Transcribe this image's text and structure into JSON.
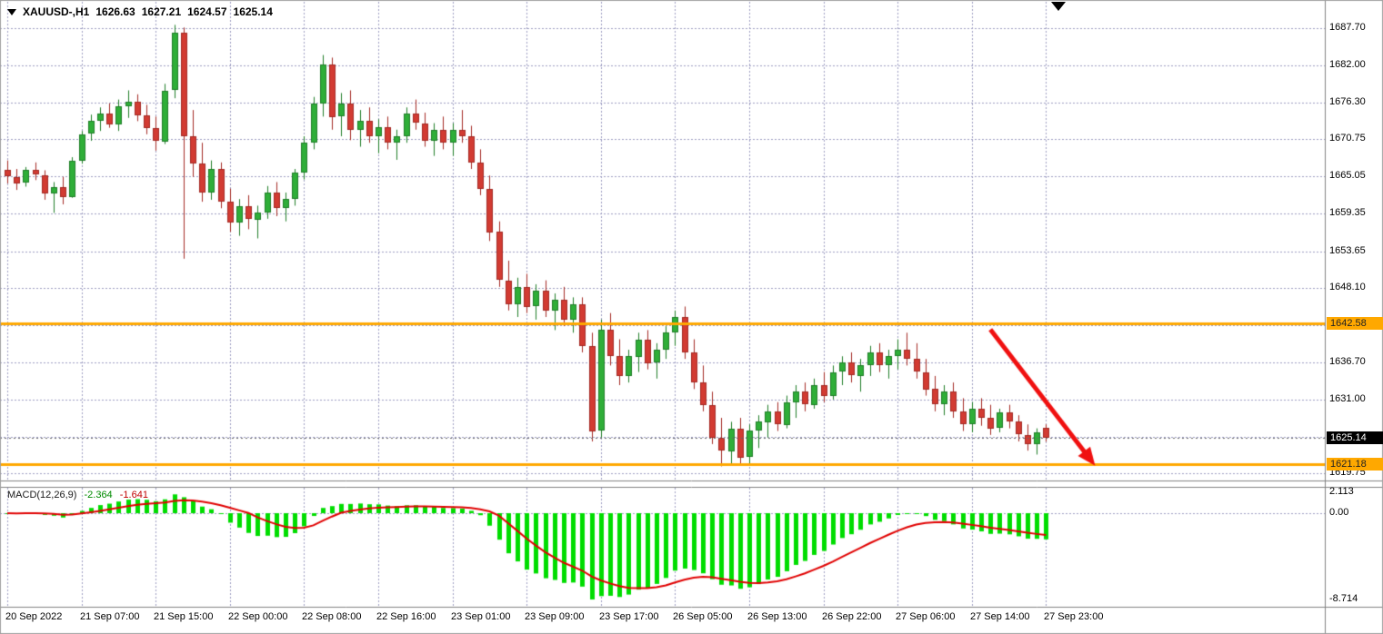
{
  "header": {
    "symbol": "XAUUSD-,H1",
    "open": "1626.63",
    "high": "1627.21",
    "low": "1624.57",
    "close": "1625.14"
  },
  "macd_header": {
    "label": "MACD(12,26,9)",
    "value": "-2.364",
    "signal": "-1.641"
  },
  "chart_data": {
    "type": "candlestick",
    "symbol": "XAUUSD-",
    "timeframe": "H1",
    "grid": true,
    "price_gridlines": [
      1687.7,
      1682.0,
      1676.3,
      1670.75,
      1665.05,
      1659.35,
      1653.65,
      1648.1,
      1642.4,
      1636.7,
      1631.0,
      1625.3,
      1619.75
    ],
    "hidden_gridline_labels": [
      8,
      11
    ],
    "time_ticks": [
      {
        "i": 0,
        "label": "20 Sep 2022"
      },
      {
        "i": 8,
        "label": "21 Sep 07:00"
      },
      {
        "i": 16,
        "label": "21 Sep 15:00"
      },
      {
        "i": 24,
        "label": "22 Sep 00:00"
      },
      {
        "i": 32,
        "label": "22 Sep 08:00"
      },
      {
        "i": 40,
        "label": "22 Sep 16:00"
      },
      {
        "i": 48,
        "label": "23 Sep 01:00"
      },
      {
        "i": 56,
        "label": "23 Sep 09:00"
      },
      {
        "i": 64,
        "label": "23 Sep 17:00"
      },
      {
        "i": 72,
        "label": "26 Sep 05:00"
      },
      {
        "i": 80,
        "label": "26 Sep 13:00"
      },
      {
        "i": 88,
        "label": "26 Sep 22:00"
      },
      {
        "i": 96,
        "label": "27 Sep 06:00"
      },
      {
        "i": 104,
        "label": "27 Sep 14:00"
      },
      {
        "i": 112,
        "label": "27 Sep 23:00"
      }
    ],
    "candles": [
      [
        1666.0,
        1667.5,
        1664.0,
        1665.0
      ],
      [
        1665.0,
        1666.2,
        1663.0,
        1664.0
      ],
      [
        1664.0,
        1666.5,
        1663.5,
        1666.0
      ],
      [
        1666.0,
        1667.2,
        1664.5,
        1665.3
      ],
      [
        1665.3,
        1666.0,
        1661.5,
        1662.5
      ],
      [
        1662.5,
        1664.2,
        1659.5,
        1663.5
      ],
      [
        1663.5,
        1665.0,
        1660.8,
        1662.0
      ],
      [
        1662.0,
        1668.0,
        1661.8,
        1667.5
      ],
      [
        1667.5,
        1672.0,
        1667.0,
        1671.5
      ],
      [
        1671.5,
        1674.5,
        1670.5,
        1673.5
      ],
      [
        1673.5,
        1675.6,
        1672.0,
        1674.6
      ],
      [
        1674.6,
        1676.2,
        1672.5,
        1673.0
      ],
      [
        1673.0,
        1676.8,
        1672.0,
        1675.8
      ],
      [
        1675.8,
        1678.2,
        1674.0,
        1676.5
      ],
      [
        1676.5,
        1677.6,
        1673.5,
        1674.4
      ],
      [
        1674.4,
        1676.0,
        1671.5,
        1672.5
      ],
      [
        1672.5,
        1674.2,
        1669.0,
        1670.5
      ],
      [
        1670.5,
        1679.2,
        1670.0,
        1678.2
      ],
      [
        1678.2,
        1688.2,
        1677.0,
        1687.0
      ],
      [
        1687.0,
        1687.8,
        1652.5,
        1671.2
      ],
      [
        1671.2,
        1675.2,
        1665.0,
        1667.0
      ],
      [
        1667.0,
        1670.2,
        1661.2,
        1662.6
      ],
      [
        1662.6,
        1667.5,
        1661.5,
        1666.2
      ],
      [
        1666.2,
        1667.2,
        1660.2,
        1661.2
      ],
      [
        1661.2,
        1663.2,
        1656.6,
        1658.0
      ],
      [
        1658.0,
        1661.6,
        1656.0,
        1660.5
      ],
      [
        1660.5,
        1662.2,
        1657.0,
        1658.5
      ],
      [
        1658.5,
        1660.6,
        1655.6,
        1659.6
      ],
      [
        1659.6,
        1663.6,
        1658.6,
        1662.6
      ],
      [
        1662.6,
        1664.2,
        1659.0,
        1660.2
      ],
      [
        1660.2,
        1662.6,
        1658.2,
        1661.6
      ],
      [
        1661.6,
        1666.2,
        1660.6,
        1665.6
      ],
      [
        1665.6,
        1671.2,
        1664.6,
        1670.2
      ],
      [
        1670.2,
        1677.2,
        1669.2,
        1676.2
      ],
      [
        1676.2,
        1683.6,
        1674.2,
        1682.2
      ],
      [
        1682.2,
        1683.2,
        1672.2,
        1674.2
      ],
      [
        1674.2,
        1677.8,
        1671.2,
        1676.2
      ],
      [
        1676.2,
        1678.2,
        1670.6,
        1672.2
      ],
      [
        1672.2,
        1675.2,
        1669.6,
        1673.6
      ],
      [
        1673.6,
        1675.6,
        1670.2,
        1671.2
      ],
      [
        1671.2,
        1673.8,
        1668.6,
        1672.6
      ],
      [
        1672.6,
        1674.2,
        1669.2,
        1670.2
      ],
      [
        1670.2,
        1672.2,
        1667.6,
        1671.2
      ],
      [
        1671.2,
        1675.6,
        1670.2,
        1674.6
      ],
      [
        1674.6,
        1676.8,
        1672.2,
        1673.2
      ],
      [
        1673.2,
        1674.8,
        1669.6,
        1670.6
      ],
      [
        1670.6,
        1673.2,
        1668.2,
        1672.2
      ],
      [
        1672.2,
        1674.2,
        1669.2,
        1670.2
      ],
      [
        1670.2,
        1673.2,
        1668.2,
        1672.2
      ],
      [
        1672.2,
        1675.2,
        1670.2,
        1671.2
      ],
      [
        1671.2,
        1672.8,
        1666.2,
        1667.2
      ],
      [
        1667.2,
        1669.2,
        1662.2,
        1663.2
      ],
      [
        1663.2,
        1665.2,
        1655.2,
        1656.6
      ],
      [
        1656.6,
        1658.2,
        1648.2,
        1649.2
      ],
      [
        1649.2,
        1652.2,
        1644.6,
        1645.6
      ],
      [
        1645.6,
        1649.6,
        1643.6,
        1648.2
      ],
      [
        1648.2,
        1650.2,
        1644.2,
        1645.2
      ],
      [
        1645.2,
        1648.6,
        1643.2,
        1647.6
      ],
      [
        1647.6,
        1649.2,
        1643.6,
        1644.6
      ],
      [
        1644.6,
        1647.2,
        1641.6,
        1646.2
      ],
      [
        1646.2,
        1648.2,
        1642.2,
        1643.2
      ],
      [
        1643.2,
        1646.6,
        1641.2,
        1645.6
      ],
      [
        1645.6,
        1646.6,
        1638.2,
        1639.2
      ],
      [
        1639.2,
        1641.2,
        1624.6,
        1626.2
      ],
      [
        1626.2,
        1643.2,
        1625.2,
        1641.6
      ],
      [
        1641.6,
        1644.2,
        1636.2,
        1637.6
      ],
      [
        1637.6,
        1640.2,
        1633.2,
        1634.6
      ],
      [
        1634.6,
        1638.6,
        1633.6,
        1637.6
      ],
      [
        1637.6,
        1641.2,
        1635.2,
        1640.2
      ],
      [
        1640.2,
        1641.6,
        1635.6,
        1636.6
      ],
      [
        1636.6,
        1639.6,
        1634.2,
        1638.6
      ],
      [
        1638.6,
        1642.2,
        1637.2,
        1641.2
      ],
      [
        1641.2,
        1644.6,
        1639.2,
        1643.6
      ],
      [
        1643.6,
        1645.2,
        1637.2,
        1638.2
      ],
      [
        1638.2,
        1640.2,
        1632.6,
        1633.6
      ],
      [
        1633.6,
        1636.2,
        1629.2,
        1630.2
      ],
      [
        1630.2,
        1632.2,
        1624.2,
        1625.2
      ],
      [
        1625.2,
        1628.2,
        1620.8,
        1623.2
      ],
      [
        1623.2,
        1627.6,
        1621.2,
        1626.6
      ],
      [
        1626.6,
        1628.2,
        1621.0,
        1622.2
      ],
      [
        1622.2,
        1627.2,
        1621.2,
        1626.2
      ],
      [
        1626.2,
        1628.6,
        1623.6,
        1627.6
      ],
      [
        1627.6,
        1630.2,
        1625.2,
        1629.2
      ],
      [
        1629.2,
        1630.6,
        1626.2,
        1627.2
      ],
      [
        1627.2,
        1631.6,
        1626.6,
        1630.6
      ],
      [
        1630.6,
        1633.2,
        1628.2,
        1632.2
      ],
      [
        1632.2,
        1633.6,
        1629.2,
        1630.2
      ],
      [
        1630.2,
        1634.2,
        1629.6,
        1633.2
      ],
      [
        1633.2,
        1635.2,
        1630.6,
        1631.6
      ],
      [
        1631.6,
        1636.2,
        1631.0,
        1635.2
      ],
      [
        1635.2,
        1637.6,
        1633.2,
        1636.6
      ],
      [
        1636.6,
        1638.2,
        1633.6,
        1634.6
      ],
      [
        1634.6,
        1637.2,
        1632.2,
        1636.2
      ],
      [
        1636.2,
        1639.2,
        1634.6,
        1638.2
      ],
      [
        1638.2,
        1639.6,
        1635.2,
        1636.2
      ],
      [
        1636.2,
        1638.6,
        1634.2,
        1637.6
      ],
      [
        1637.6,
        1640.2,
        1635.6,
        1638.6
      ],
      [
        1638.6,
        1641.2,
        1636.2,
        1637.2
      ],
      [
        1637.2,
        1639.6,
        1634.2,
        1635.2
      ],
      [
        1635.2,
        1637.2,
        1631.6,
        1632.6
      ],
      [
        1632.6,
        1634.6,
        1629.2,
        1630.2
      ],
      [
        1630.2,
        1633.2,
        1628.6,
        1632.2
      ],
      [
        1632.2,
        1633.6,
        1628.2,
        1629.2
      ],
      [
        1629.2,
        1631.2,
        1626.2,
        1627.2
      ],
      [
        1627.2,
        1630.6,
        1626.0,
        1629.6
      ],
      [
        1629.6,
        1631.2,
        1627.0,
        1628.2
      ],
      [
        1628.2,
        1630.2,
        1625.6,
        1626.6
      ],
      [
        1626.6,
        1629.6,
        1626.0,
        1629.0
      ],
      [
        1629.0,
        1630.2,
        1626.6,
        1627.6
      ],
      [
        1627.6,
        1628.6,
        1624.6,
        1625.6
      ],
      [
        1625.6,
        1627.2,
        1623.2,
        1624.2
      ],
      [
        1624.2,
        1626.6,
        1622.6,
        1626.0
      ],
      [
        1626.63,
        1627.21,
        1624.57,
        1625.14
      ]
    ],
    "levels": {
      "resistance": 1642.58,
      "support": 1621.18,
      "current_price": 1625.14
    },
    "indicator": {
      "name": "MACD",
      "params": [
        12,
        26,
        9
      ],
      "axis_labels": [
        "2.113",
        "0.00",
        "-8.714"
      ],
      "last_value": -2.364,
      "last_signal": -1.641
    },
    "arrow": {
      "from_index": 106,
      "from_price": 1641.7,
      "to_index": 117.3,
      "to_price": 1620.9
    },
    "colors": {
      "bull": "#2fae38",
      "bull_border": "#1e7d26",
      "bear": "#d23b32",
      "bear_border": "#a32822",
      "histogram": "#00dd00",
      "signal_line": "#e00000",
      "level_line": "#ffa800",
      "grid": "#9b9bc0",
      "current_line": "#666666",
      "arrow": "#f01010",
      "tag_current_bg": "#000000",
      "tag_level_bg": "#ffa800"
    }
  }
}
